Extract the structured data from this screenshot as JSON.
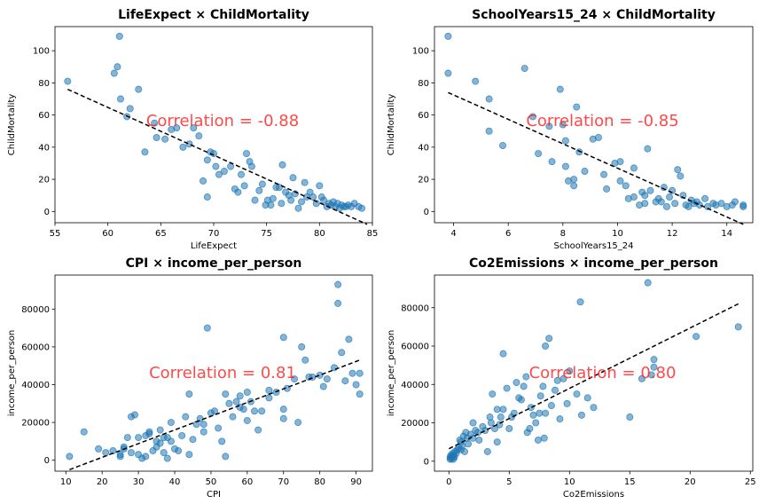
{
  "chart_data": [
    {
      "type": "scatter",
      "title": "LifeExpect × ChildMortality",
      "xlabel": "LifeExpect",
      "ylabel": "ChildMortality",
      "xlim": [
        55,
        85
      ],
      "ylim": [
        -7,
        115
      ],
      "xticks": [
        55,
        60,
        65,
        70,
        75,
        80,
        85
      ],
      "yticks": [
        0,
        20,
        40,
        60,
        80,
        100
      ],
      "annotation": "Correlation =  -0.88",
      "correlation": -0.88,
      "trendline": {
        "x": [
          56.2,
          84.5
        ],
        "y": [
          76,
          -8
        ]
      },
      "points": [
        [
          56.2,
          81
        ],
        [
          60.6,
          86
        ],
        [
          60.9,
          90
        ],
        [
          61.1,
          109
        ],
        [
          61.2,
          70
        ],
        [
          61.8,
          59
        ],
        [
          62.1,
          64
        ],
        [
          62.9,
          76
        ],
        [
          63.5,
          37
        ],
        [
          64.4,
          55
        ],
        [
          64.6,
          46
        ],
        [
          65.4,
          45
        ],
        [
          66.0,
          51
        ],
        [
          66.5,
          52
        ],
        [
          67.1,
          40
        ],
        [
          67.7,
          42
        ],
        [
          68.1,
          52
        ],
        [
          68.6,
          47
        ],
        [
          69.0,
          19
        ],
        [
          69.4,
          9
        ],
        [
          69.4,
          32
        ],
        [
          69.7,
          37
        ],
        [
          70.0,
          36
        ],
        [
          70.2,
          28
        ],
        [
          70.5,
          23
        ],
        [
          71.0,
          25
        ],
        [
          71.6,
          28
        ],
        [
          72.0,
          14
        ],
        [
          72.3,
          12
        ],
        [
          72.6,
          23
        ],
        [
          72.9,
          16
        ],
        [
          73.1,
          36
        ],
        [
          73.4,
          31
        ],
        [
          73.6,
          28
        ],
        [
          73.9,
          7
        ],
        [
          74.3,
          13
        ],
        [
          74.6,
          17
        ],
        [
          74.9,
          4
        ],
        [
          75.1,
          7
        ],
        [
          75.4,
          4
        ],
        [
          75.6,
          8
        ],
        [
          75.9,
          15
        ],
        [
          76.2,
          15
        ],
        [
          76.4,
          5
        ],
        [
          76.5,
          29
        ],
        [
          76.8,
          12
        ],
        [
          77.1,
          10
        ],
        [
          77.3,
          7
        ],
        [
          77.5,
          21
        ],
        [
          77.7,
          11
        ],
        [
          78.0,
          2
        ],
        [
          78.3,
          6
        ],
        [
          78.6,
          18
        ],
        [
          78.8,
          9
        ],
        [
          79.1,
          12
        ],
        [
          79.4,
          9
        ],
        [
          79.7,
          5
        ],
        [
          80.0,
          16
        ],
        [
          80.2,
          9
        ],
        [
          80.4,
          7
        ],
        [
          80.7,
          3
        ],
        [
          80.9,
          5
        ],
        [
          81.1,
          4
        ],
        [
          81.3,
          6
        ],
        [
          81.5,
          3
        ],
        [
          81.7,
          5
        ],
        [
          81.9,
          2
        ],
        [
          82.1,
          4
        ],
        [
          82.3,
          3
        ],
        [
          82.5,
          3
        ],
        [
          82.7,
          4
        ],
        [
          83.0,
          3
        ],
        [
          83.3,
          5
        ],
        [
          83.7,
          3
        ],
        [
          84.0,
          2
        ]
      ]
    },
    {
      "type": "scatter",
      "title": "SchoolYears15_24 × ChildMortality",
      "xlabel": "SchoolYears15_24",
      "ylabel": "ChildMortality",
      "xlim": [
        3.3,
        14.95
      ],
      "ylim": [
        -7,
        115
      ],
      "xticks": [
        4,
        6,
        8,
        10,
        12,
        14
      ],
      "yticks": [
        0,
        20,
        40,
        60,
        80,
        100
      ],
      "annotation": "Correlation =  -0.85",
      "correlation": -0.85,
      "trendline": {
        "x": [
          3.8,
          14.6
        ],
        "y": [
          74,
          -8
        ]
      },
      "points": [
        [
          3.8,
          109
        ],
        [
          3.8,
          86
        ],
        [
          4.8,
          81
        ],
        [
          5.3,
          70
        ],
        [
          5.3,
          50
        ],
        [
          5.8,
          41
        ],
        [
          6.6,
          89
        ],
        [
          6.9,
          59
        ],
        [
          7.1,
          36
        ],
        [
          7.5,
          53
        ],
        [
          7.6,
          31
        ],
        [
          7.9,
          76
        ],
        [
          8.0,
          54
        ],
        [
          8.1,
          44
        ],
        [
          8.1,
          28
        ],
        [
          8.2,
          19
        ],
        [
          8.4,
          16
        ],
        [
          8.4,
          20
        ],
        [
          8.5,
          65
        ],
        [
          8.6,
          37
        ],
        [
          8.8,
          25
        ],
        [
          9.1,
          45
        ],
        [
          9.3,
          46
        ],
        [
          9.5,
          23
        ],
        [
          9.6,
          14
        ],
        [
          9.9,
          30
        ],
        [
          10.1,
          31
        ],
        [
          10.1,
          19
        ],
        [
          10.3,
          16
        ],
        [
          10.4,
          8
        ],
        [
          10.6,
          9
        ],
        [
          10.6,
          27
        ],
        [
          10.8,
          4
        ],
        [
          10.9,
          12
        ],
        [
          11.0,
          5
        ],
        [
          11.0,
          10
        ],
        [
          11.1,
          39
        ],
        [
          11.2,
          13
        ],
        [
          11.4,
          6
        ],
        [
          11.5,
          8
        ],
        [
          11.6,
          6
        ],
        [
          11.7,
          15
        ],
        [
          11.8,
          3
        ],
        [
          11.9,
          9
        ],
        [
          12.0,
          13
        ],
        [
          12.1,
          5
        ],
        [
          12.2,
          26
        ],
        [
          12.3,
          22
        ],
        [
          12.4,
          10
        ],
        [
          12.5,
          4
        ],
        [
          12.6,
          3
        ],
        [
          12.7,
          7
        ],
        [
          12.8,
          5
        ],
        [
          12.9,
          6
        ],
        [
          13.0,
          4
        ],
        [
          13.2,
          8
        ],
        [
          13.3,
          3
        ],
        [
          13.5,
          5
        ],
        [
          13.6,
          4
        ],
        [
          13.8,
          5
        ],
        [
          14.0,
          3
        ],
        [
          14.2,
          4
        ],
        [
          14.3,
          6
        ],
        [
          14.6,
          3
        ],
        [
          14.6,
          4
        ]
      ]
    },
    {
      "type": "scatter",
      "title": "CPI × income_per_person",
      "xlabel": "CPI",
      "ylabel": "income_per_person",
      "xlim": [
        7,
        94.5
      ],
      "ylim": [
        -5800,
        98000
      ],
      "xticks": [
        10,
        20,
        30,
        40,
        50,
        60,
        70,
        80,
        90
      ],
      "yticks": [
        0,
        20000,
        40000,
        60000,
        80000
      ],
      "ytick_labels": [
        "0",
        "20000",
        "40000",
        "60000",
        "80000"
      ],
      "annotation": "Correlation =  0.81",
      "correlation": 0.81,
      "trendline": {
        "x": [
          11,
          91
        ],
        "y": [
          -5000,
          53000
        ]
      },
      "points": [
        [
          11,
          2000
        ],
        [
          15,
          15000
        ],
        [
          19,
          6000
        ],
        [
          21,
          4000
        ],
        [
          23,
          5000
        ],
        [
          25,
          3000
        ],
        [
          25,
          2000
        ],
        [
          26,
          6000
        ],
        [
          26,
          7000
        ],
        [
          27,
          12000
        ],
        [
          28,
          23000
        ],
        [
          28,
          4000
        ],
        [
          29,
          24000
        ],
        [
          30,
          12000
        ],
        [
          30,
          3000
        ],
        [
          31,
          1000
        ],
        [
          32,
          13000
        ],
        [
          32,
          2000
        ],
        [
          33,
          14000
        ],
        [
          33,
          15000
        ],
        [
          34,
          5000
        ],
        [
          35,
          10000
        ],
        [
          35,
          7000
        ],
        [
          36,
          9000
        ],
        [
          36,
          16000
        ],
        [
          37,
          12000
        ],
        [
          37,
          4000
        ],
        [
          38,
          12000
        ],
        [
          38,
          1000
        ],
        [
          39,
          10000
        ],
        [
          39,
          20000
        ],
        [
          40,
          6000
        ],
        [
          41,
          5000
        ],
        [
          42,
          13000
        ],
        [
          43,
          23000
        ],
        [
          44,
          35000
        ],
        [
          44,
          3000
        ],
        [
          45,
          11000
        ],
        [
          46,
          19000
        ],
        [
          47,
          22000
        ],
        [
          48,
          19000
        ],
        [
          48,
          15000
        ],
        [
          49,
          70000
        ],
        [
          50,
          25000
        ],
        [
          51,
          26000
        ],
        [
          52,
          17000
        ],
        [
          53,
          10000
        ],
        [
          54,
          35000
        ],
        [
          54,
          2000
        ],
        [
          55,
          30000
        ],
        [
          56,
          23000
        ],
        [
          57,
          31000
        ],
        [
          58,
          34000
        ],
        [
          58,
          28000
        ],
        [
          59,
          27000
        ],
        [
          60,
          36000
        ],
        [
          60,
          21000
        ],
        [
          61,
          31000
        ],
        [
          62,
          26000
        ],
        [
          63,
          16000
        ],
        [
          64,
          26000
        ],
        [
          66,
          37000
        ],
        [
          66,
          33000
        ],
        [
          68,
          36000
        ],
        [
          70,
          27000
        ],
        [
          70,
          22000
        ],
        [
          70,
          65000
        ],
        [
          71,
          38000
        ],
        [
          73,
          43000
        ],
        [
          74,
          20000
        ],
        [
          75,
          60000
        ],
        [
          76,
          53000
        ],
        [
          77,
          44000
        ],
        [
          78,
          44000
        ],
        [
          80,
          45000
        ],
        [
          81,
          39000
        ],
        [
          82,
          43000
        ],
        [
          84,
          49000
        ],
        [
          85,
          83000
        ],
        [
          85,
          93000
        ],
        [
          86,
          57000
        ],
        [
          87,
          42000
        ],
        [
          88,
          64000
        ],
        [
          89,
          46000
        ],
        [
          90,
          40000
        ],
        [
          91,
          46000
        ],
        [
          91,
          35000
        ]
      ]
    },
    {
      "type": "scatter",
      "title": "Co2Emissions × income_per_person",
      "xlabel": "Co2Emissions",
      "ylabel": "income_per_person",
      "xlim": [
        -1.2,
        25.2
      ],
      "ylim": [
        -5200,
        97000
      ],
      "xticks": [
        0,
        5,
        10,
        15,
        20,
        25
      ],
      "yticks": [
        0,
        20000,
        40000,
        60000,
        80000
      ],
      "ytick_labels": [
        "0",
        "20000",
        "40000",
        "60000",
        "80000"
      ],
      "annotation": "Correlation =  0.80",
      "correlation": 0.8,
      "trendline": {
        "x": [
          0,
          24
        ],
        "y": [
          6500,
          82000
        ]
      },
      "points": [
        [
          0.1,
          1000
        ],
        [
          0.1,
          2000
        ],
        [
          0.15,
          3000
        ],
        [
          0.2,
          1500
        ],
        [
          0.25,
          2500
        ],
        [
          0.3,
          4000
        ],
        [
          0.35,
          1000
        ],
        [
          0.4,
          3000
        ],
        [
          0.45,
          2000
        ],
        [
          0.5,
          5000
        ],
        [
          0.6,
          4000
        ],
        [
          0.7,
          6000
        ],
        [
          0.8,
          7000
        ],
        [
          0.9,
          11000
        ],
        [
          1.0,
          6000
        ],
        [
          1.0,
          10000
        ],
        [
          1.1,
          8000
        ],
        [
          1.2,
          13000
        ],
        [
          1.3,
          5000
        ],
        [
          1.4,
          15000
        ],
        [
          1.5,
          12000
        ],
        [
          1.6,
          9000
        ],
        [
          1.8,
          14000
        ],
        [
          2.0,
          12000
        ],
        [
          2.0,
          20000
        ],
        [
          2.2,
          16000
        ],
        [
          2.4,
          15000
        ],
        [
          2.5,
          11000
        ],
        [
          2.8,
          18000
        ],
        [
          3.0,
          16000
        ],
        [
          3.2,
          5000
        ],
        [
          3.4,
          23000
        ],
        [
          3.5,
          20000
        ],
        [
          3.6,
          35000
        ],
        [
          3.8,
          17000
        ],
        [
          4.0,
          27000
        ],
        [
          4.0,
          10000
        ],
        [
          4.2,
          19000
        ],
        [
          4.3,
          23000
        ],
        [
          4.5,
          27000
        ],
        [
          4.5,
          56000
        ],
        [
          4.8,
          38000
        ],
        [
          5.0,
          17000
        ],
        [
          5.2,
          23000
        ],
        [
          5.4,
          25000
        ],
        [
          5.6,
          41000
        ],
        [
          5.8,
          33000
        ],
        [
          6.0,
          32000
        ],
        [
          6.2,
          39000
        ],
        [
          6.4,
          44000
        ],
        [
          6.5,
          15000
        ],
        [
          6.7,
          17000
        ],
        [
          6.8,
          28000
        ],
        [
          7.0,
          24000
        ],
        [
          7.2,
          20000
        ],
        [
          7.4,
          11000
        ],
        [
          7.5,
          25000
        ],
        [
          7.6,
          34000
        ],
        [
          7.8,
          39000
        ],
        [
          7.9,
          12000
        ],
        [
          8.0,
          25000
        ],
        [
          8.0,
          60000
        ],
        [
          8.3,
          64000
        ],
        [
          8.5,
          29000
        ],
        [
          8.8,
          37000
        ],
        [
          9.0,
          42000
        ],
        [
          9.2,
          22000
        ],
        [
          9.5,
          43000
        ],
        [
          9.8,
          30000
        ],
        [
          10.0,
          47000
        ],
        [
          10.6,
          35000
        ],
        [
          10.9,
          83000
        ],
        [
          11.0,
          24000
        ],
        [
          11.5,
          33000
        ],
        [
          12.0,
          28000
        ],
        [
          15.0,
          23000
        ],
        [
          16.0,
          43000
        ],
        [
          16.5,
          93000
        ],
        [
          16.8,
          45000
        ],
        [
          17.0,
          53000
        ],
        [
          17.0,
          49000
        ],
        [
          20.5,
          65000
        ],
        [
          24.0,
          70000
        ]
      ]
    }
  ]
}
